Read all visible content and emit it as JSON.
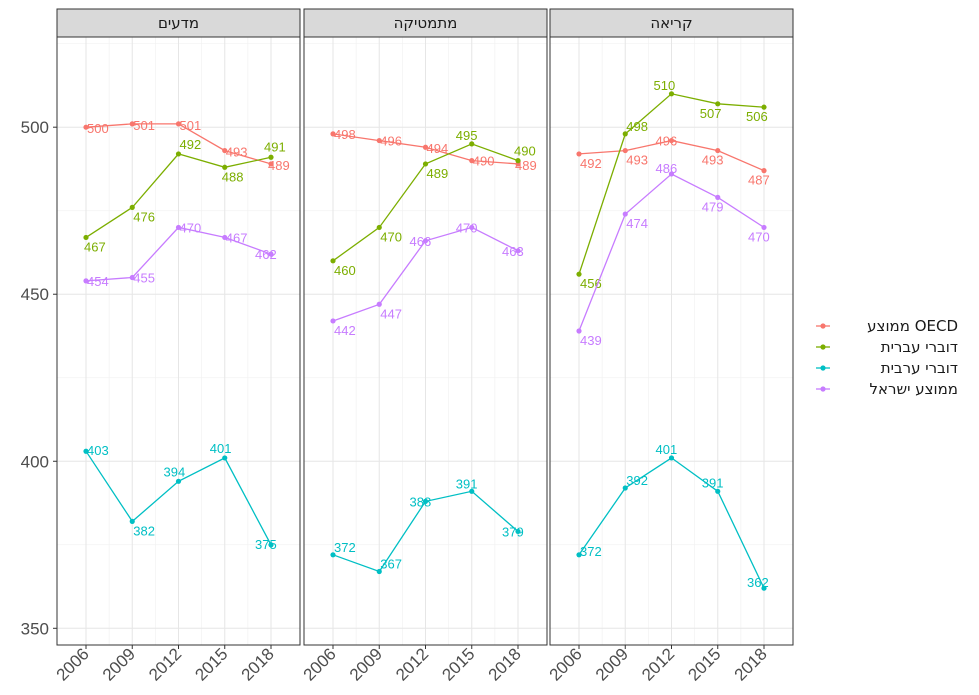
{
  "chart_data": {
    "type": "line",
    "x": [
      2006,
      2009,
      2012,
      2015,
      2018
    ],
    "ylim": [
      345,
      527
    ],
    "y_ticks": [
      350,
      400,
      450,
      500
    ],
    "grid": true,
    "legend_position": "right",
    "facets": [
      {
        "title": "מדעים",
        "series": [
          {
            "name": "ממוצע OECD",
            "color": "#F8766D",
            "values": [
              500,
              501,
              501,
              493,
              489
            ]
          },
          {
            "name": "דוברי עברית",
            "color": "#7CAE00",
            "values": [
              467,
              476,
              492,
              488,
              491
            ]
          },
          {
            "name": "דוברי ערבית",
            "color": "#00BFC4",
            "values": [
              403,
              382,
              394,
              401,
              375
            ]
          },
          {
            "name": "ממוצע ישראל",
            "color": "#C77CFF",
            "values": [
              454,
              455,
              470,
              467,
              462
            ]
          }
        ]
      },
      {
        "title": "מתמטיקה",
        "series": [
          {
            "name": "ממוצע OECD",
            "color": "#F8766D",
            "values": [
              498,
              496,
              494,
              490,
              489
            ]
          },
          {
            "name": "דוברי עברית",
            "color": "#7CAE00",
            "values": [
              460,
              470,
              489,
              495,
              490
            ]
          },
          {
            "name": "דוברי ערבית",
            "color": "#00BFC4",
            "values": [
              372,
              367,
              388,
              391,
              379
            ]
          },
          {
            "name": "ממוצע ישראל",
            "color": "#C77CFF",
            "values": [
              442,
              447,
              466,
              470,
              463
            ]
          }
        ]
      },
      {
        "title": "קריאה",
        "series": [
          {
            "name": "ממוצע OECD",
            "color": "#F8766D",
            "values": [
              492,
              493,
              496,
              493,
              487
            ]
          },
          {
            "name": "דוברי עברית",
            "color": "#7CAE00",
            "values": [
              456,
              498,
              510,
              507,
              506
            ]
          },
          {
            "name": "דוברי ערבית",
            "color": "#00BFC4",
            "values": [
              372,
              392,
              401,
              391,
              362
            ]
          },
          {
            "name": "ממוצע ישראל",
            "color": "#C77CFF",
            "values": [
              439,
              474,
              486,
              479,
              470
            ]
          }
        ]
      }
    ]
  }
}
